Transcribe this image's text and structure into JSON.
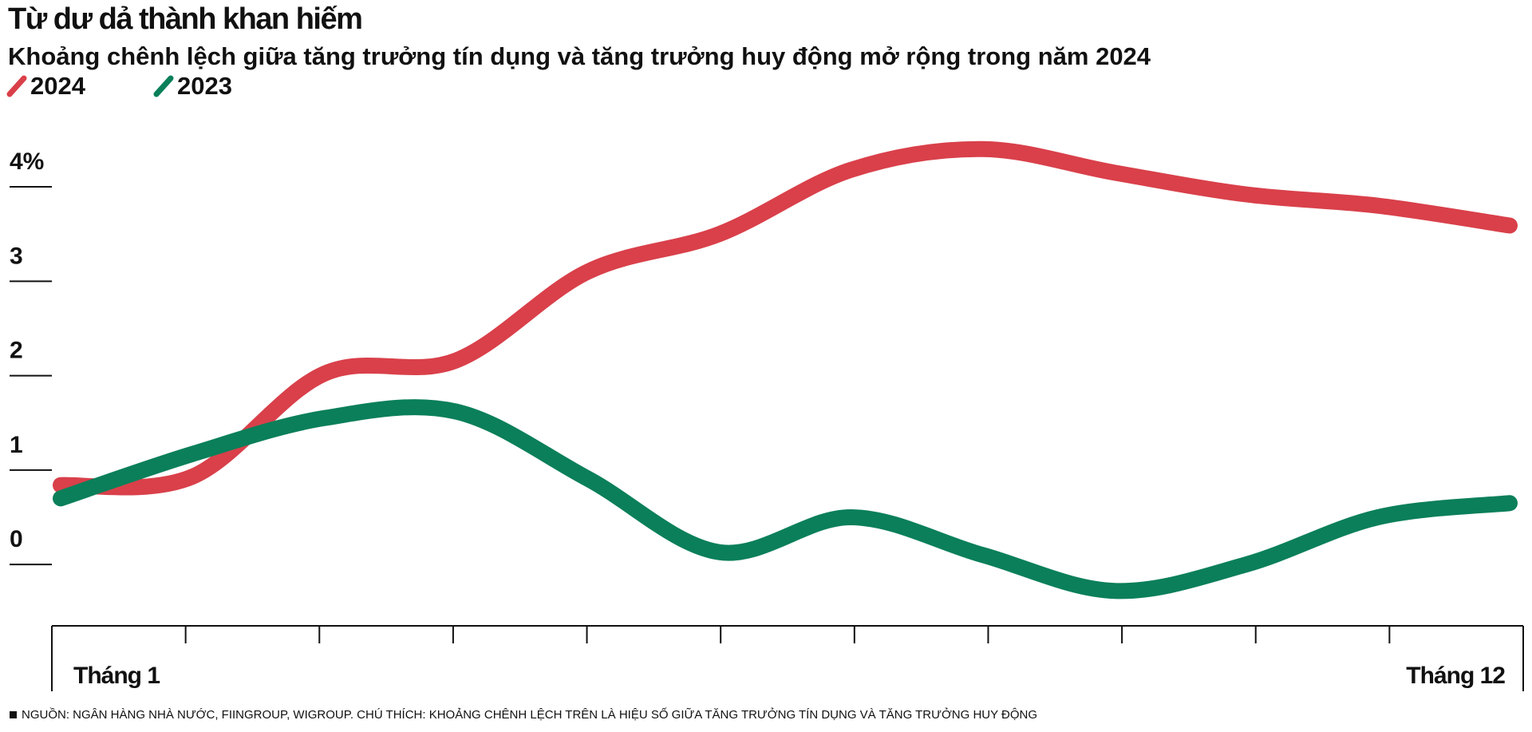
{
  "chart_data": {
    "type": "line",
    "title": "Từ dư dả thành khan hiếm",
    "subtitle": "Khoảng chênh lệch giữa tăng trưởng tín dụng và tăng trưởng huy động mở rộng trong năm 2024",
    "categories": [
      "Tháng 1",
      null,
      null,
      null,
      null,
      null,
      null,
      null,
      null,
      null,
      null,
      "Tháng 12"
    ],
    "series": [
      {
        "name": "2024",
        "color": "#d9404a",
        "values": [
          0.84,
          0.93,
          2.02,
          2.16,
          3.1,
          3.5,
          4.18,
          4.4,
          4.15,
          3.92,
          3.8,
          3.59
        ]
      },
      {
        "name": "2023",
        "color": "#0a7f5a",
        "values": [
          0.7,
          1.17,
          1.55,
          1.62,
          0.91,
          0.13,
          0.5,
          0.1,
          -0.28,
          0.0,
          0.5,
          0.65
        ]
      }
    ],
    "ylim": [
      -0.65,
      4.55
    ],
    "yticks": [
      0,
      1,
      2,
      3,
      {
        "value": 4,
        "label": "4%"
      }
    ],
    "source": "NGUỒN: NGÂN HÀNG NHÀ NƯỚC, FIINGROUP, WIGROUP. CHÚ THÍCH: KHOẢNG CHÊNH LỆCH TRÊN LÀ HIỆU SỐ GIỮA TĂNG TRƯỞNG TÍN DỤNG VÀ TĂNG TRƯỞNG HUY ĐỘNG"
  }
}
